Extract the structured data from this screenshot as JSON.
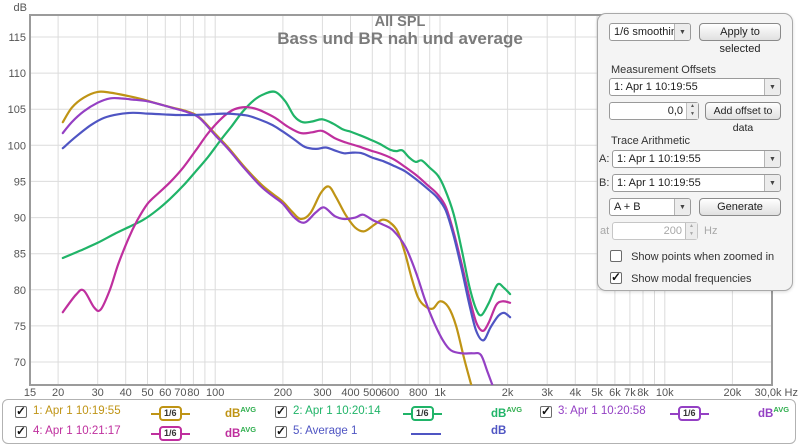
{
  "title": "All SPL",
  "subtitle": "Bass und BR nah und average",
  "axes": {
    "y_unit": "dB",
    "x_unit": "Hz",
    "y_ticks": [
      115,
      110,
      105,
      100,
      95,
      90,
      85,
      80,
      75,
      70
    ],
    "x_ticks": [
      {
        "f": 15,
        "label": "15"
      },
      {
        "f": 20,
        "label": "20"
      },
      {
        "f": 30,
        "label": "30"
      },
      {
        "f": 40,
        "label": "40"
      },
      {
        "f": 50,
        "label": "50"
      },
      {
        "f": 60,
        "label": "60"
      },
      {
        "f": 70,
        "label": "70"
      },
      {
        "f": 80,
        "label": "80"
      },
      {
        "f": 100,
        "label": "100"
      },
      {
        "f": 200,
        "label": "200"
      },
      {
        "f": 300,
        "label": "300"
      },
      {
        "f": 400,
        "label": "400"
      },
      {
        "f": 500,
        "label": "500"
      },
      {
        "f": 600,
        "label": "600"
      },
      {
        "f": 800,
        "label": "800"
      },
      {
        "f": 1000,
        "label": "1k"
      },
      {
        "f": 2000,
        "label": "2k"
      },
      {
        "f": 3000,
        "label": "3k"
      },
      {
        "f": 4000,
        "label": "4k"
      },
      {
        "f": 5000,
        "label": "5k"
      },
      {
        "f": 6000,
        "label": "6k"
      },
      {
        "f": 7000,
        "label": "7k"
      },
      {
        "f": 8000,
        "label": "8k"
      },
      {
        "f": 10000,
        "label": "10k"
      },
      {
        "f": 20000,
        "label": "20k"
      },
      {
        "f": 30000,
        "label": "30,0k"
      }
    ]
  },
  "chart_data": {
    "type": "line",
    "x_scale": "log",
    "xlim": [
      15,
      30000
    ],
    "ylim": [
      66.8,
      118.1
    ],
    "grid": true,
    "title": "All SPL",
    "subtitle": "Bass und BR nah und average",
    "xlabel": "Hz",
    "ylabel": "dB",
    "series": [
      {
        "name": "1: Apr 1 10:19:55",
        "color": "#bf9415",
        "points": [
          [
            21,
            103.2
          ],
          [
            23,
            105.2
          ],
          [
            26,
            106.6
          ],
          [
            30,
            107.4
          ],
          [
            34,
            107.3
          ],
          [
            40,
            106.9
          ],
          [
            47,
            106.4
          ],
          [
            55,
            105.8
          ],
          [
            65,
            105.2
          ],
          [
            75,
            104.7
          ],
          [
            85,
            103.9
          ],
          [
            100,
            101.6
          ],
          [
            115,
            99.6
          ],
          [
            135,
            97.0
          ],
          [
            160,
            94.6
          ],
          [
            180,
            93.3
          ],
          [
            200,
            92.2
          ],
          [
            220,
            90.8
          ],
          [
            240,
            89.8
          ],
          [
            265,
            90.6
          ],
          [
            295,
            93.4
          ],
          [
            320,
            94.3
          ],
          [
            345,
            92.8
          ],
          [
            380,
            90.4
          ],
          [
            420,
            88.6
          ],
          [
            460,
            88.1
          ],
          [
            510,
            89.0
          ],
          [
            555,
            89.7
          ],
          [
            600,
            89.3
          ],
          [
            650,
            88.0
          ],
          [
            700,
            85.0
          ],
          [
            750,
            81.5
          ],
          [
            800,
            78.9
          ],
          [
            860,
            77.7
          ],
          [
            930,
            77.4
          ],
          [
            1000,
            78.4
          ],
          [
            1090,
            77.6
          ],
          [
            1180,
            75.0
          ],
          [
            1280,
            70.5
          ],
          [
            1390,
            66.4
          ]
        ]
      },
      {
        "name": "2: Apr 1 10:20:14",
        "color": "#20b468",
        "points": [
          [
            21,
            84.4
          ],
          [
            25,
            85.4
          ],
          [
            30,
            86.5
          ],
          [
            36,
            87.8
          ],
          [
            42,
            88.8
          ],
          [
            48,
            89.7
          ],
          [
            55,
            91.0
          ],
          [
            63,
            92.6
          ],
          [
            72,
            94.4
          ],
          [
            82,
            96.4
          ],
          [
            93,
            98.4
          ],
          [
            105,
            100.6
          ],
          [
            118,
            102.6
          ],
          [
            132,
            104.6
          ],
          [
            148,
            106.2
          ],
          [
            165,
            107.1
          ],
          [
            185,
            107.4
          ],
          [
            205,
            106.1
          ],
          [
            225,
            104.0
          ],
          [
            245,
            103.2
          ],
          [
            270,
            103.3
          ],
          [
            300,
            103.6
          ],
          [
            335,
            103.0
          ],
          [
            370,
            102.2
          ],
          [
            400,
            101.9
          ],
          [
            440,
            101.4
          ],
          [
            490,
            100.8
          ],
          [
            540,
            100.2
          ],
          [
            600,
            99.4
          ],
          [
            640,
            99.2
          ],
          [
            680,
            99.3
          ],
          [
            730,
            98.3
          ],
          [
            780,
            97.7
          ],
          [
            830,
            97.9
          ],
          [
            900,
            96.9
          ],
          [
            980,
            95.8
          ],
          [
            1050,
            94.0
          ],
          [
            1150,
            90.5
          ],
          [
            1250,
            85.5
          ],
          [
            1350,
            80.5
          ],
          [
            1450,
            77.3
          ],
          [
            1530,
            76.5
          ],
          [
            1650,
            78.2
          ],
          [
            1800,
            80.7
          ],
          [
            1920,
            80.3
          ],
          [
            2050,
            79.4
          ]
        ]
      },
      {
        "name": "3: Apr 1 10:20:58",
        "color": "#9440c4",
        "points": [
          [
            21,
            101.7
          ],
          [
            23,
            103.2
          ],
          [
            26,
            104.7
          ],
          [
            30,
            105.9
          ],
          [
            34,
            106.5
          ],
          [
            38,
            106.5
          ],
          [
            44,
            106.3
          ],
          [
            50,
            106.1
          ],
          [
            58,
            105.6
          ],
          [
            66,
            105.1
          ],
          [
            75,
            104.6
          ],
          [
            85,
            103.8
          ],
          [
            100,
            101.4
          ],
          [
            115,
            99.4
          ],
          [
            135,
            96.8
          ],
          [
            160,
            94.3
          ],
          [
            180,
            93.0
          ],
          [
            200,
            91.9
          ],
          [
            225,
            90.0
          ],
          [
            250,
            89.3
          ],
          [
            280,
            90.7
          ],
          [
            305,
            91.4
          ],
          [
            340,
            90.2
          ],
          [
            375,
            89.8
          ],
          [
            420,
            90.0
          ],
          [
            455,
            90.4
          ],
          [
            505,
            89.6
          ],
          [
            560,
            89.0
          ],
          [
            620,
            88.2
          ],
          [
            700,
            86.0
          ],
          [
            780,
            82.5
          ],
          [
            860,
            78.5
          ],
          [
            940,
            75.5
          ],
          [
            1030,
            73.0
          ],
          [
            1120,
            71.6
          ],
          [
            1250,
            71.2
          ],
          [
            1400,
            71.2
          ],
          [
            1520,
            71.0
          ],
          [
            1620,
            68.8
          ],
          [
            1730,
            66.4
          ]
        ]
      },
      {
        "name": "4: Apr 1 10:21:17",
        "color": "#bf2f9e",
        "points": [
          [
            21,
            76.9
          ],
          [
            24,
            79.3
          ],
          [
            26,
            79.9
          ],
          [
            29,
            77.5
          ],
          [
            31,
            77.3
          ],
          [
            34,
            80.0
          ],
          [
            37,
            83.5
          ],
          [
            41,
            87.0
          ],
          [
            45,
            89.6
          ],
          [
            50,
            91.9
          ],
          [
            56,
            93.4
          ],
          [
            63,
            94.9
          ],
          [
            72,
            96.9
          ],
          [
            82,
            99.3
          ],
          [
            92,
            101.5
          ],
          [
            102,
            103.1
          ],
          [
            112,
            104.3
          ],
          [
            122,
            105.0
          ],
          [
            135,
            105.3
          ],
          [
            150,
            105.1
          ],
          [
            165,
            104.6
          ],
          [
            185,
            103.8
          ],
          [
            210,
            102.6
          ],
          [
            240,
            101.7
          ],
          [
            270,
            101.8
          ],
          [
            300,
            102.0
          ],
          [
            340,
            101.0
          ],
          [
            380,
            100.4
          ],
          [
            430,
            99.9
          ],
          [
            490,
            99.3
          ],
          [
            550,
            98.8
          ],
          [
            620,
            98.1
          ],
          [
            700,
            97.0
          ],
          [
            790,
            95.8
          ],
          [
            880,
            94.5
          ],
          [
            970,
            93.3
          ],
          [
            1060,
            91.5
          ],
          [
            1150,
            88.0
          ],
          [
            1250,
            83.5
          ],
          [
            1350,
            79.0
          ],
          [
            1450,
            75.5
          ],
          [
            1550,
            74.3
          ],
          [
            1650,
            75.5
          ],
          [
            1780,
            77.9
          ],
          [
            1900,
            78.4
          ],
          [
            2050,
            78.2
          ]
        ]
      },
      {
        "name": "5: Average 1",
        "color": "#4f55c3",
        "points": [
          [
            21,
            99.6
          ],
          [
            24,
            101.2
          ],
          [
            28,
            102.8
          ],
          [
            32,
            103.8
          ],
          [
            37,
            104.3
          ],
          [
            43,
            104.5
          ],
          [
            50,
            104.4
          ],
          [
            58,
            104.3
          ],
          [
            68,
            104.2
          ],
          [
            80,
            104.2
          ],
          [
            95,
            104.3
          ],
          [
            110,
            104.4
          ],
          [
            125,
            104.3
          ],
          [
            140,
            104.1
          ],
          [
            160,
            103.5
          ],
          [
            180,
            102.8
          ],
          [
            200,
            101.9
          ],
          [
            225,
            100.8
          ],
          [
            250,
            99.8
          ],
          [
            280,
            99.5
          ],
          [
            310,
            99.7
          ],
          [
            340,
            99.3
          ],
          [
            375,
            98.9
          ],
          [
            410,
            99.0
          ],
          [
            450,
            98.9
          ],
          [
            500,
            98.3
          ],
          [
            560,
            97.8
          ],
          [
            630,
            97.1
          ],
          [
            700,
            96.4
          ],
          [
            790,
            95.2
          ],
          [
            880,
            94.0
          ],
          [
            970,
            92.8
          ],
          [
            1060,
            91.0
          ],
          [
            1150,
            87.5
          ],
          [
            1250,
            82.8
          ],
          [
            1350,
            78.0
          ],
          [
            1450,
            74.3
          ],
          [
            1560,
            73.0
          ],
          [
            1680,
            74.8
          ],
          [
            1820,
            76.4
          ],
          [
            1930,
            76.8
          ],
          [
            2050,
            76.2
          ]
        ]
      }
    ]
  },
  "panel": {
    "smoothing_value": "1/6 smoothing",
    "apply_button": "Apply to selected",
    "offsets_label": "Measurement Offsets",
    "offsets_select": "1: Apr 1 10:19:55",
    "offset_value": "0,0",
    "add_offset_button": "Add offset to data",
    "arithmetic_label": "Trace Arithmetic",
    "a_label": "A:",
    "a_select": "1: Apr 1 10:19:55",
    "b_label": "B:",
    "b_select": "1: Apr 1 10:19:55",
    "op_select": "A + B",
    "generate_button": "Generate",
    "at_label": "at",
    "at_value": "200",
    "hz_label": "Hz",
    "show_points_label": "Show points when zoomed in",
    "show_points_checked": false,
    "show_modal_label": "Show modal frequencies",
    "show_modal_checked": true
  },
  "legend": {
    "sup_text": "AVG",
    "sup_color": "#2fae4e",
    "entries": [
      {
        "label": "1: Apr 1 10:19:55",
        "color": "#bf9415",
        "checked": true,
        "smoothing": "1/6",
        "unit": "dB",
        "has_avg": true,
        "row": 1,
        "col": 1
      },
      {
        "label": "2: Apr 1 10:20:14",
        "color": "#20b468",
        "checked": true,
        "smoothing": "1/6",
        "unit": "dB",
        "has_avg": true,
        "row": 1,
        "col": 2
      },
      {
        "label": "3: Apr 1 10:20:58",
        "color": "#9440c4",
        "checked": true,
        "smoothing": "1/6",
        "unit": "dB",
        "has_avg": true,
        "row": 1,
        "col": 3
      },
      {
        "label": "4: Apr 1 10:21:17",
        "color": "#bf2f9e",
        "checked": true,
        "smoothing": "1/6",
        "unit": "dB",
        "has_avg": true,
        "row": 2,
        "col": 1
      },
      {
        "label": "5: Average 1",
        "color": "#4f55c3",
        "checked": true,
        "smoothing": null,
        "unit": "dB",
        "has_avg": false,
        "row": 2,
        "col": 2
      }
    ]
  }
}
